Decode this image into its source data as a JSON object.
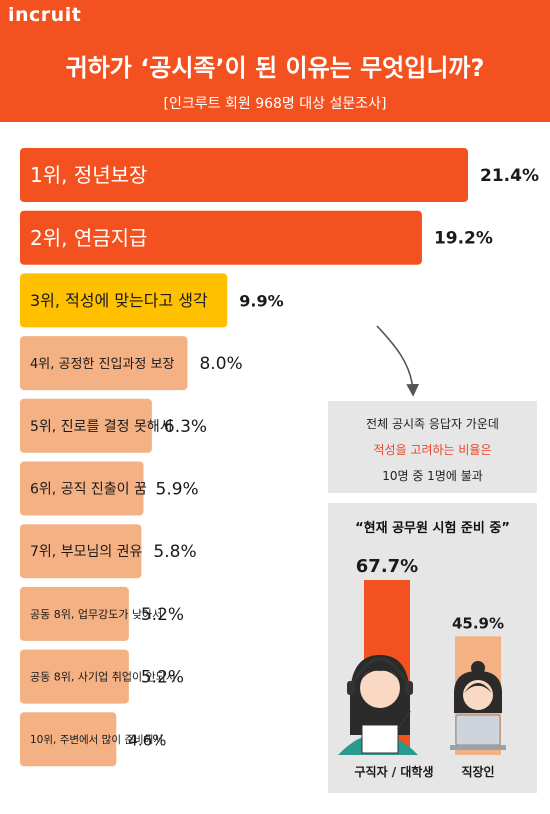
{
  "brand": "incruit",
  "title": "귀하가 ‘공시족’이 된 이유는 무엇입니까?",
  "subtitle": "[인크루트 회원 968명 대상 설문조사]",
  "note": {
    "line1": "전체 공시족 응답자 가운데",
    "line2": "적성을 고려하는 비율은",
    "line3": "10명 중 1명에 불과"
  },
  "prep": {
    "title": "“현재 공무원 시험 준비 중”"
  },
  "colors": {
    "brand_orange": "#f3511f",
    "highlight_yellow": "#ffc000",
    "peach": "#f4b183"
  },
  "chart_data": [
    {
      "type": "bar",
      "orientation": "horizontal",
      "categories": [
        "1위, 정년보장",
        "2위, 연금지급",
        "3위, 적성에 맞는다고 생각",
        "4위, 공정한 진입과정 보장",
        "5위, 진로를 결정 못해서",
        "6위, 공직 진출이 꿈",
        "7위, 부모님의 권유",
        "공동 8위, 업무강도가 낮아서",
        "공동 8위, 사기업 취업이 안되서",
        "10위, 주변에서 많이 준비해서"
      ],
      "values": [
        21.4,
        19.2,
        9.9,
        8.0,
        6.3,
        5.9,
        5.8,
        5.2,
        5.2,
        4.6
      ],
      "value_labels": [
        "21.4%",
        "19.2%",
        "9.9%",
        "8.0%",
        "6.3%",
        "5.9%",
        "5.8%",
        "5.2%",
        "5.2%",
        "4.6%"
      ],
      "colors": [
        "#f3511f",
        "#f3511f",
        "#ffc000",
        "#f4b183",
        "#f4b183",
        "#f4b183",
        "#f4b183",
        "#f4b183",
        "#f4b183",
        "#f4b183"
      ],
      "xlim": [
        0,
        21.4
      ]
    },
    {
      "type": "bar",
      "orientation": "vertical",
      "categories": [
        "구직자 / 대학생",
        "직장인"
      ],
      "values": [
        67.7,
        45.9
      ],
      "value_labels": [
        "67.7%",
        "45.9%"
      ],
      "colors": [
        "#f3511f",
        "#f4b183"
      ],
      "ylim": [
        0,
        67.7
      ]
    }
  ]
}
